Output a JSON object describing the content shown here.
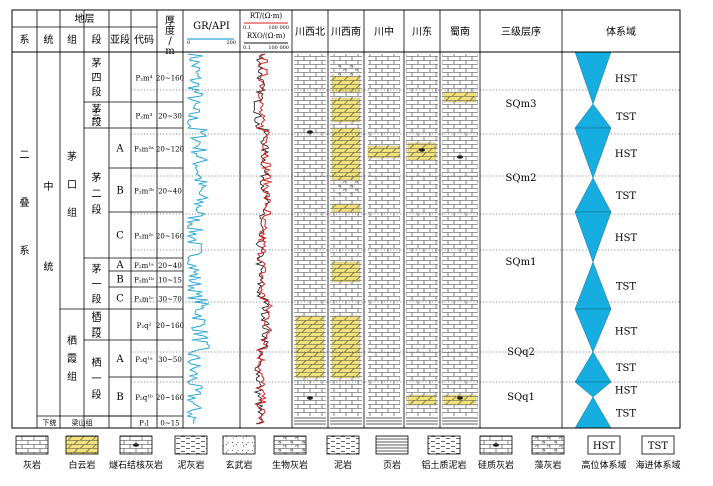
{
  "header": {
    "strata": "地层",
    "thickness": "厚度/m",
    "gr_label": "GR/API",
    "gr_min": "0",
    "gr_max": "200",
    "rt_label": "RT/(Ω·m)",
    "rxo_label": "RXO/(Ω·m)",
    "res_min": "0.1",
    "res_max": "100 000",
    "third_order": "三级层序",
    "systems_tract": "体系域",
    "columns": [
      "系",
      "统",
      "组",
      "段",
      "亚段",
      "代码"
    ],
    "regions": [
      "川西北",
      "川西南",
      "川中",
      "川东",
      "蜀南"
    ]
  },
  "strat": {
    "system": "二叠系",
    "series_middle": "中统",
    "series_lower": "下统",
    "formation_maokou": "茅口组",
    "formation_qixia": "栖霞组",
    "formation_liangshan": "梁山组",
    "rows": [
      {
        "member": "茅四段",
        "sub": "",
        "code": "P₂m⁴",
        "thickness": "20~160"
      },
      {
        "member": "茅三段",
        "sub": "",
        "code": "P₂m³",
        "thickness": "20~30"
      },
      {
        "member": "茅二段",
        "sub": "A",
        "code": "P₂m²ᵃ",
        "thickness": "20~120"
      },
      {
        "member": "",
        "sub": "B",
        "code": "P₂m²ᵇ",
        "thickness": "20~40"
      },
      {
        "member": "",
        "sub": "C",
        "code": "P₂m²ᶜ",
        "thickness": "20~160"
      },
      {
        "member": "茅一段",
        "sub": "A",
        "code": "P₂m¹ᵃ",
        "thickness": "20~40"
      },
      {
        "member": "",
        "sub": "B",
        "code": "P₂m¹ᵇ",
        "thickness": "10~15"
      },
      {
        "member": "",
        "sub": "C",
        "code": "P₂m¹ᶜ",
        "thickness": "30~70"
      },
      {
        "member": "栖二段",
        "sub": "",
        "code": "P₂q²",
        "thickness": "20~160"
      },
      {
        "member": "栖一段",
        "sub": "A",
        "code": "P₂q¹ᵃ",
        "thickness": "30~50"
      },
      {
        "member": "",
        "sub": "B",
        "code": "P₂q¹ᵇ",
        "thickness": "20~160"
      },
      {
        "member": "",
        "sub": "",
        "code": "P₁l",
        "thickness": "0~15"
      }
    ]
  },
  "sequences": [
    "SQm3",
    "SQm2",
    "SQm1",
    "SQq2",
    "SQq1"
  ],
  "tracts": [
    "HST",
    "TST",
    "HST",
    "TST",
    "HST",
    "TST",
    "HST",
    "TST",
    "HST",
    "TST"
  ],
  "legend": [
    {
      "label": "灰岩",
      "symbol": "limestone-icon"
    },
    {
      "label": "白云岩",
      "symbol": "dolomite-icon"
    },
    {
      "label": "燧石结核灰岩",
      "symbol": "chert-limestone-icon"
    },
    {
      "label": "泥灰岩",
      "symbol": "marl-icon"
    },
    {
      "label": "玄武岩",
      "symbol": "basalt-icon"
    },
    {
      "label": "生物灰岩",
      "symbol": "bio-limestone-icon"
    },
    {
      "label": "泥岩",
      "symbol": "mudstone-icon"
    },
    {
      "label": "页岩",
      "symbol": "shale-icon"
    },
    {
      "label": "铝土质泥岩",
      "symbol": "bauxitic-mudstone-icon"
    },
    {
      "label": "硅质灰岩",
      "symbol": "siliceous-limestone-icon"
    },
    {
      "label": "藻灰岩",
      "symbol": "algal-limestone-icon"
    },
    {
      "label": "高位体系域",
      "symbol": "HST"
    },
    {
      "label": "海进体系域",
      "symbol": "TST"
    }
  ],
  "colors": {
    "gr_curve": "#2aa7d9",
    "rt_curve": "#d91f1f",
    "rxo_curve": "#111111",
    "dolomite_fill": "#f3e27a",
    "tract_fill": "#16aee0"
  }
}
